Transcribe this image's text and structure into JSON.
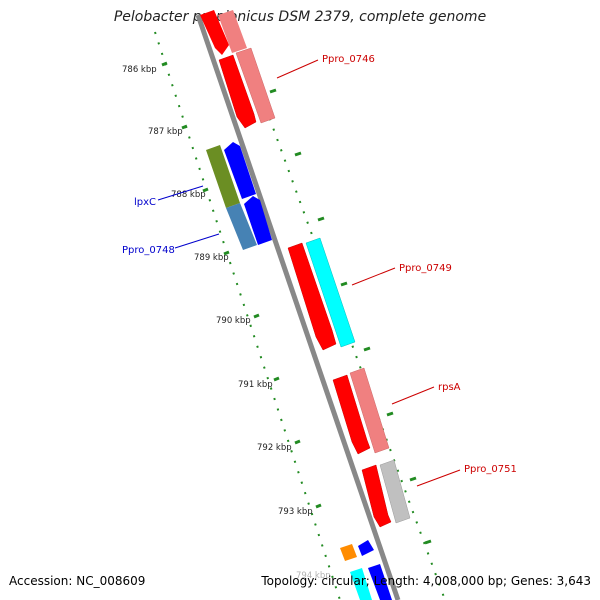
{
  "title": "Pelobacter propionicus DSM 2379, complete genome",
  "footer": {
    "accession": "Accession: NC_008609",
    "summary": "Topology: circular; Length: 4,008,000 bp; Genes: 3,643"
  },
  "colors": {
    "red": "#ff0000",
    "pink": "#f08080",
    "blue": "#0000ff",
    "olive": "#6b8e23",
    "steel": "#4682b4",
    "cyan": "#00ffff",
    "gray": "#c0c0c0",
    "orange": "#ff8c00",
    "tick_green": "#228b22",
    "axis_gray": "#888888",
    "label_red": "#cc0000",
    "label_blue": "#0000cc"
  },
  "kbp_labels": [
    "786 kbp",
    "787 kbp",
    "788 kbp",
    "789 kbp",
    "790 kbp",
    "791 kbp",
    "792 kbp",
    "793 kbp",
    "794 kbp"
  ],
  "gene_labels": {
    "ppro_0746": "Ppro_0746",
    "ppro_0749": "Ppro_0749",
    "rpsa": "rpsA",
    "ppro_0751": "Ppro_0751",
    "lpxc": "lpxC",
    "ppro_0748": "Ppro_0748"
  }
}
